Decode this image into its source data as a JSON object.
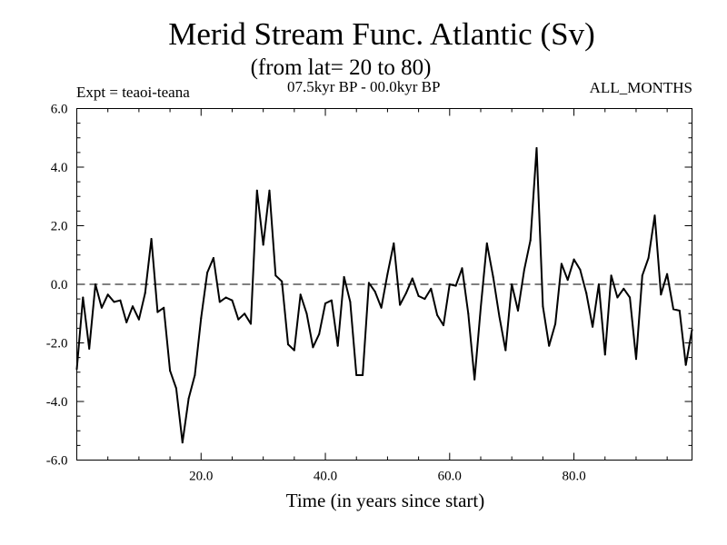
{
  "chart_data": {
    "type": "line",
    "title": "Merid Stream Func. Atlantic (Sv)",
    "subtitle": "(from lat= 20 to 80)",
    "experiment": "Expt = teaoi-teana",
    "period": "07.5kyr BP - 00.0kyr BP",
    "months": "ALL_MONTHS",
    "xlabel": "Time (in years since start)",
    "ylabel": "",
    "xlim": [
      0,
      99
    ],
    "ylim": [
      -6.0,
      6.0
    ],
    "xticks": [
      20,
      40,
      60,
      80
    ],
    "xtick_labels": [
      "20.0",
      "40.0",
      "60.0",
      "80.0"
    ],
    "yticks": [
      -6,
      -4,
      -2,
      0,
      2,
      4,
      6
    ],
    "ytick_labels": [
      "-6.0",
      "-4.0",
      "-2.0",
      "0.0",
      "2.0",
      "4.0",
      "6.0"
    ],
    "reference_line": 0,
    "series": [
      {
        "name": "Merid Stream Func.",
        "x": [
          0,
          1,
          2,
          3,
          4,
          5,
          6,
          7,
          8,
          9,
          10,
          11,
          12,
          13,
          14,
          15,
          16,
          17,
          18,
          19,
          20,
          21,
          22,
          23,
          24,
          25,
          26,
          27,
          28,
          29,
          30,
          31,
          32,
          33,
          34,
          35,
          36,
          37,
          38,
          39,
          40,
          41,
          42,
          43,
          44,
          45,
          46,
          47,
          48,
          49,
          50,
          51,
          52,
          53,
          54,
          55,
          56,
          57,
          58,
          59,
          60,
          61,
          62,
          63,
          64,
          65,
          66,
          67,
          68,
          69,
          70,
          71,
          72,
          73,
          74,
          75,
          76,
          77,
          78,
          79,
          80,
          81,
          82,
          83,
          84,
          85,
          86,
          87,
          88,
          89,
          90,
          91,
          92,
          93,
          94,
          95,
          96,
          97,
          98,
          99
        ],
        "values": [
          -2.9,
          -0.45,
          -2.2,
          0.0,
          -0.8,
          -0.35,
          -0.6,
          -0.55,
          -1.3,
          -0.75,
          -1.2,
          -0.3,
          1.55,
          -0.95,
          -0.8,
          -2.95,
          -3.55,
          -5.4,
          -3.9,
          -3.1,
          -1.15,
          0.4,
          0.9,
          -0.6,
          -0.45,
          -0.55,
          -1.2,
          -1.0,
          -1.35,
          3.2,
          1.35,
          3.2,
          0.3,
          0.1,
          -2.05,
          -2.25,
          -0.35,
          -1.0,
          -2.15,
          -1.7,
          -0.65,
          -0.55,
          -2.1,
          0.25,
          -0.6,
          -3.1,
          -3.1,
          0.05,
          -0.25,
          -0.8,
          0.35,
          1.4,
          -0.7,
          -0.3,
          0.2,
          -0.4,
          -0.5,
          -0.15,
          -1.05,
          -1.4,
          0.0,
          -0.05,
          0.55,
          -1.0,
          -3.25,
          -0.8,
          1.4,
          0.25,
          -1.1,
          -2.25,
          0.0,
          -0.9,
          0.5,
          1.5,
          4.65,
          -0.75,
          -2.1,
          -1.35,
          0.7,
          0.15,
          0.85,
          0.5,
          -0.3,
          -1.45,
          0.0,
          -2.4,
          0.3,
          -0.45,
          -0.15,
          -0.45,
          -2.55,
          0.3,
          0.9,
          2.35,
          -0.35,
          0.35,
          -0.85,
          -0.9,
          -2.75,
          -1.55
        ]
      }
    ]
  }
}
